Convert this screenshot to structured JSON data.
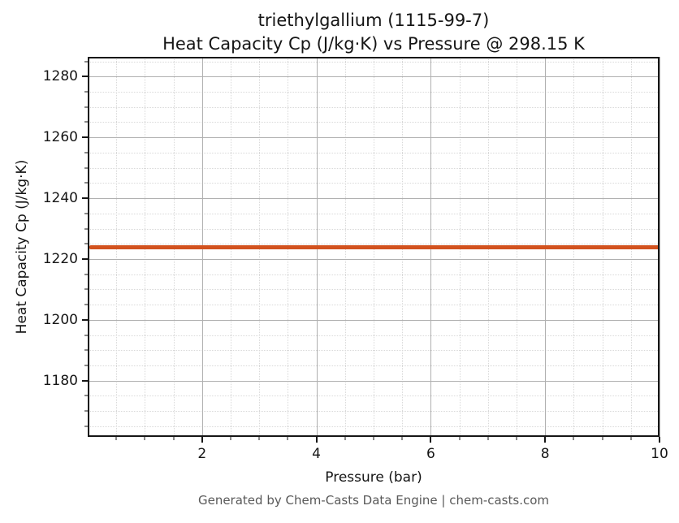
{
  "figure": {
    "footer": "Generated by Chem-Casts Data Engine | chem-casts.com"
  },
  "chart_data": {
    "type": "line",
    "title": "triethylgallium (1115-99-7)",
    "subtitle": "Heat Capacity Cp (J/kg·K) vs Pressure @ 298.15 K",
    "xlabel": "Pressure (bar)",
    "ylabel": "Heat Capacity Cp (J/kg·K)",
    "temperature_K": "298.15",
    "substance": "triethylgallium",
    "cas_number": "1115-99-7",
    "series": [
      {
        "name": "Heat Capacity Cp",
        "color": "#d2521e",
        "x": [
          0.03,
          10
        ],
        "y": [
          1224,
          1224
        ]
      }
    ],
    "xlim": [
      0,
      10
    ],
    "ylim": [
      1161.5,
      1286.5
    ],
    "x_major_ticks": [
      2,
      4,
      6,
      8,
      10
    ],
    "x_minor_step": 0.5,
    "y_major_ticks": [
      1180,
      1200,
      1220,
      1240,
      1260,
      1280
    ],
    "y_minor_step": 5,
    "grid": {
      "major": true,
      "minor": true
    },
    "legend": "none"
  }
}
